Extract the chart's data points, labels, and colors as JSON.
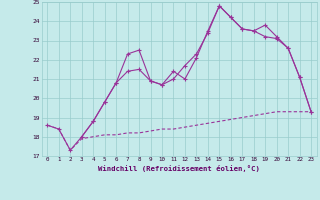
{
  "xlabel": "Windchill (Refroidissement éolien,°C)",
  "bg_color": "#c5eaea",
  "line_color": "#993399",
  "grid_color": "#99cccc",
  "xlim": [
    -0.5,
    23.5
  ],
  "ylim": [
    17,
    25
  ],
  "yticks": [
    17,
    18,
    19,
    20,
    21,
    22,
    23,
    24,
    25
  ],
  "xticks": [
    0,
    1,
    2,
    3,
    4,
    5,
    6,
    7,
    8,
    9,
    10,
    11,
    12,
    13,
    14,
    15,
    16,
    17,
    18,
    19,
    20,
    21,
    22,
    23
  ],
  "line1_x": [
    0,
    1,
    2,
    3,
    4,
    5,
    6,
    7,
    8,
    9,
    10,
    11,
    12,
    13,
    14,
    15,
    16,
    17,
    18,
    19,
    20,
    21,
    22,
    23
  ],
  "line1_y": [
    18.6,
    18.4,
    17.3,
    18.0,
    18.8,
    19.8,
    20.8,
    21.4,
    21.5,
    20.9,
    20.7,
    21.0,
    21.7,
    22.3,
    23.4,
    24.8,
    24.2,
    23.6,
    23.5,
    23.2,
    23.1,
    22.6,
    21.1,
    19.3
  ],
  "line2_x": [
    0,
    1,
    2,
    3,
    4,
    5,
    6,
    7,
    8,
    9,
    10,
    11,
    12,
    13,
    14,
    15,
    16,
    17,
    18,
    19,
    20,
    21,
    22,
    23
  ],
  "line2_y": [
    18.6,
    18.4,
    17.3,
    17.9,
    18.0,
    18.1,
    18.1,
    18.2,
    18.2,
    18.3,
    18.4,
    18.4,
    18.5,
    18.6,
    18.7,
    18.8,
    18.9,
    19.0,
    19.1,
    19.2,
    19.3,
    19.3,
    19.3,
    19.3
  ],
  "line3_x": [
    3,
    4,
    5,
    6,
    7,
    8,
    9,
    10,
    11,
    12,
    13,
    14,
    15,
    16,
    17,
    18,
    19,
    20,
    21,
    22,
    23
  ],
  "line3_y": [
    18.0,
    18.8,
    19.8,
    20.8,
    22.3,
    22.5,
    20.9,
    20.7,
    21.4,
    21.0,
    22.1,
    23.5,
    24.8,
    24.2,
    23.6,
    23.5,
    23.8,
    23.2,
    22.6,
    21.1,
    19.3
  ]
}
